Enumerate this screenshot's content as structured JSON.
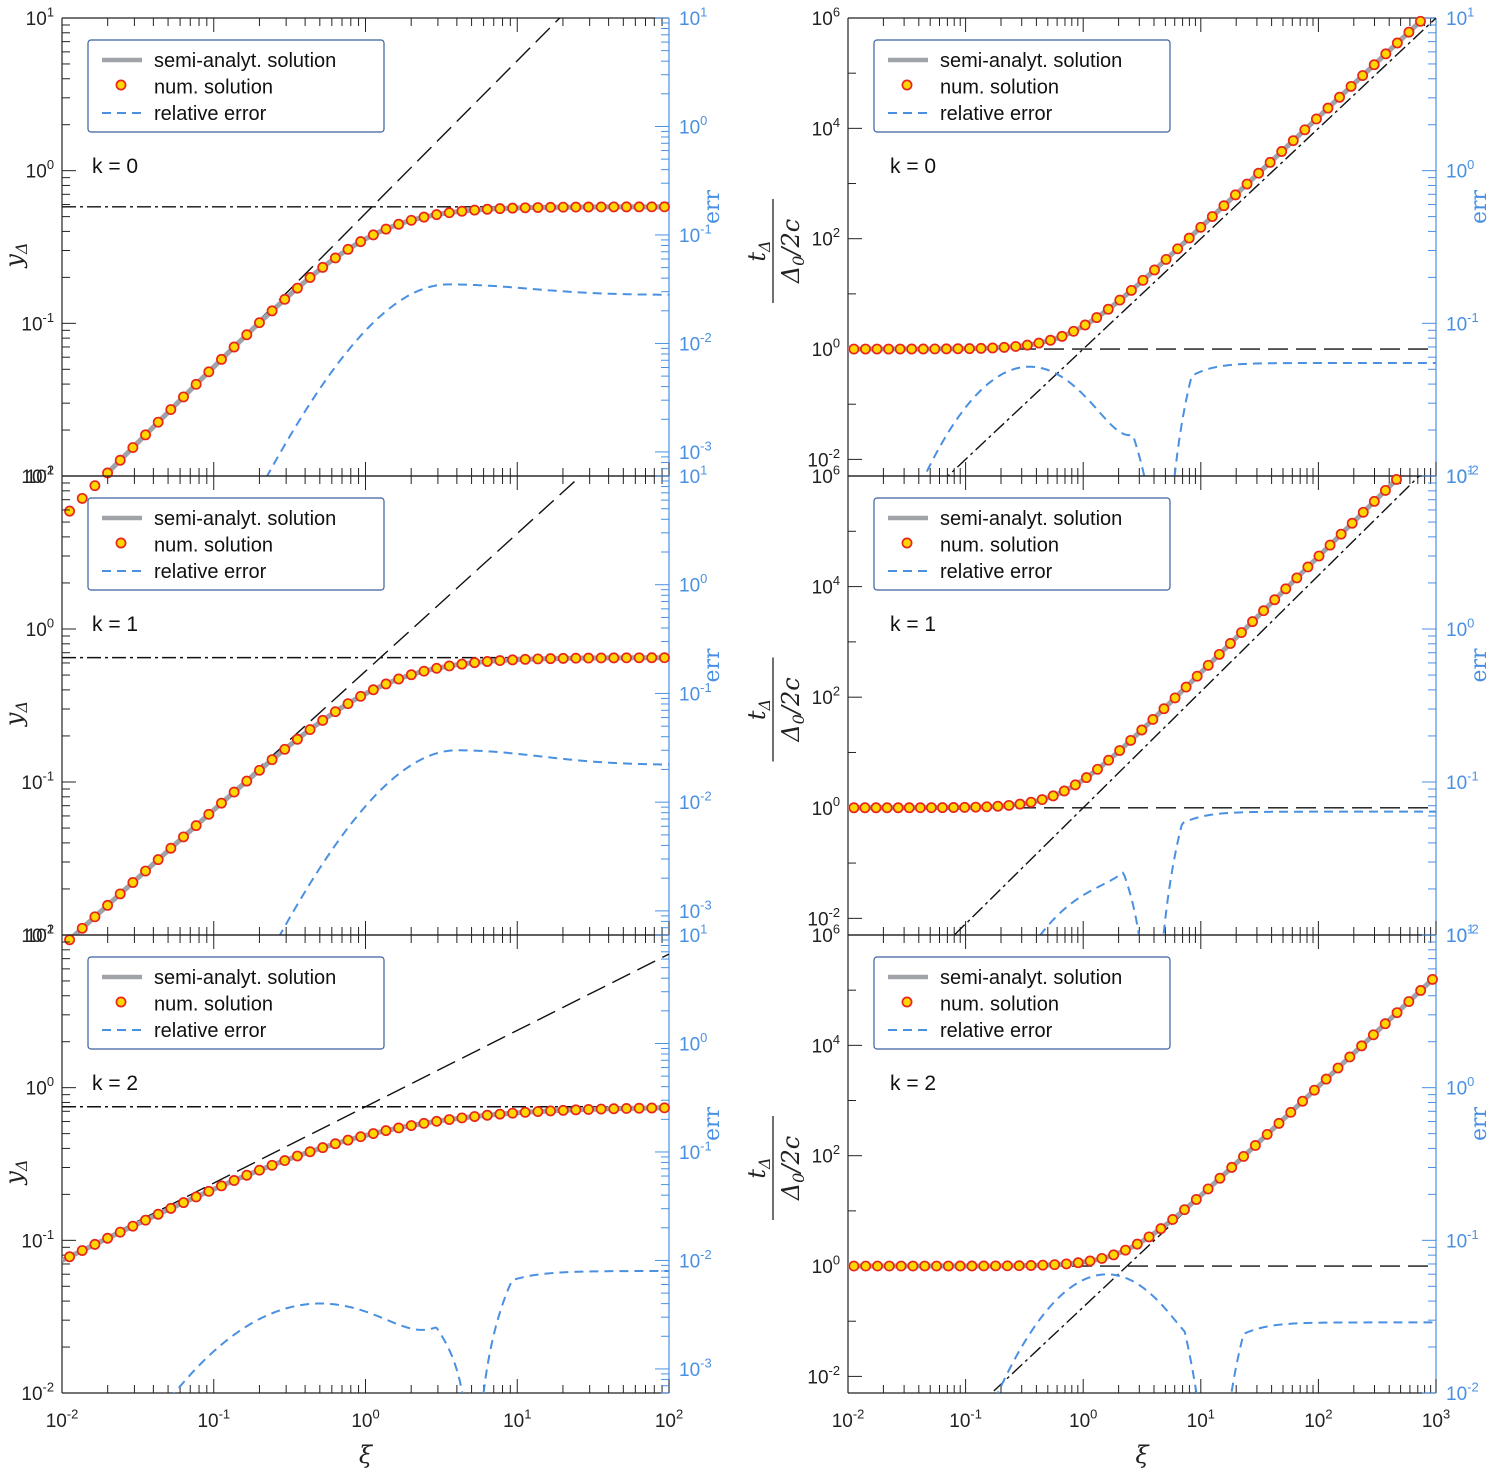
{
  "figure": {
    "err_color": "#4a90e2",
    "marker_fill": "#ffd700",
    "marker_stroke": "#e8251c",
    "semi_color": "#a0a4a8"
  },
  "chart_data": [
    {
      "id": "left-k0",
      "type": "line",
      "xscale": "log",
      "yscale": "log",
      "y2scale": "log",
      "xlim": [
        0.01,
        100
      ],
      "ylim": [
        0.01,
        10
      ],
      "y2lim": [
        0.0006,
        10
      ],
      "ylabel": "y_Δ",
      "y2label": "err",
      "k_label": "k = 0",
      "xticks": [
        0.01,
        0.1,
        1,
        10,
        100
      ],
      "yticks": [
        0.01,
        0.1,
        1,
        10
      ],
      "y2ticks": [
        0.001,
        0.01,
        0.1,
        1,
        10
      ],
      "legend": [
        "semi-analyt. solution",
        "num. solution",
        "relative error"
      ],
      "asymptote_dash": {
        "slope": 1,
        "value_at_1": 0.525
      },
      "asymptote_dashdot": {
        "value": 0.58
      },
      "solution": {
        "kind": "lsat",
        "a": 1,
        "b": 0.525,
        "c": 0.58,
        "p": 1.6
      },
      "error": {
        "kind": "peak",
        "peak_x": 3.5,
        "peak_val": 0.035,
        "lo_slope": 3,
        "hi_val": 0.028
      },
      "num_points": 48
    },
    {
      "id": "right-k0",
      "type": "line",
      "xscale": "log",
      "yscale": "log",
      "y2scale": "log",
      "xlim": [
        0.01,
        1000
      ],
      "ylim": [
        0.005,
        1000000
      ],
      "y2lim": [
        0.01,
        10
      ],
      "ylabel": "t_Δ / (Δ_0/2c)",
      "y2label": "err",
      "k_label": "k = 0",
      "xticks": [
        0.01,
        0.1,
        1,
        10,
        100,
        1000
      ],
      "yticks": [
        0.01,
        1,
        100,
        10000,
        1000000
      ],
      "y2ticks": [
        0.01,
        0.1,
        1,
        10
      ],
      "legend": [
        "semi-analyt. solution",
        "num. solution",
        "relative error"
      ],
      "asymptote_dash": {
        "value": 1
      },
      "asymptote_dashdot": {
        "slope": 2,
        "value_at_1": 1
      },
      "solution": {
        "kind": "rsum",
        "a": 1,
        "b": 1.6,
        "p": 2
      },
      "error": {
        "kind": "dip",
        "peak_x": 0.35,
        "peak_val": 0.052,
        "zero_x": 4.7,
        "hi_val": 0.055,
        "lo_slope": 1.5
      },
      "num_points": 50
    },
    {
      "id": "left-k1",
      "type": "line",
      "xscale": "log",
      "yscale": "log",
      "y2scale": "log",
      "xlim": [
        0.01,
        100
      ],
      "ylim": [
        0.01,
        10
      ],
      "y2lim": [
        0.0006,
        10
      ],
      "ylabel": "y_Δ",
      "y2label": "err",
      "k_label": "k = 1",
      "xticks": [
        0.01,
        0.1,
        1,
        10,
        100
      ],
      "yticks": [
        0.01,
        0.1,
        1,
        10
      ],
      "y2ticks": [
        0.001,
        0.01,
        0.1,
        1,
        10
      ],
      "legend": [
        "semi-analyt. solution",
        "num. solution",
        "relative error"
      ],
      "asymptote_dash": {
        "slope": 0.9,
        "value_at_1": 0.53
      },
      "asymptote_dashdot": {
        "value": 0.65
      },
      "solution": {
        "kind": "lsat",
        "a": 0.9,
        "b": 0.53,
        "c": 0.65,
        "p": 1.6
      },
      "error": {
        "kind": "peak",
        "peak_x": 4,
        "peak_val": 0.03,
        "lo_slope": 3,
        "hi_val": 0.022
      },
      "num_points": 48
    },
    {
      "id": "right-k1",
      "type": "line",
      "xscale": "log",
      "yscale": "log",
      "y2scale": "log",
      "xlim": [
        0.01,
        1000
      ],
      "ylim": [
        0.005,
        1000000
      ],
      "y2lim": [
        0.01,
        10
      ],
      "ylabel": "t_Δ / (Δ_0/2c)",
      "y2label": "err",
      "k_label": "k = 1",
      "xticks": [
        0.01,
        0.1,
        1,
        10,
        100,
        1000
      ],
      "yticks": [
        0.01,
        1,
        100,
        10000,
        1000000
      ],
      "y2ticks": [
        0.01,
        0.1,
        1,
        10
      ],
      "legend": [
        "semi-analyt. solution",
        "num. solution",
        "relative error"
      ],
      "asymptote_dash": {
        "value": 1
      },
      "asymptote_dashdot": {
        "slope": 2.1,
        "value_at_1": 1
      },
      "solution": {
        "kind": "rsum",
        "a": 1,
        "b": 2.2,
        "p": 2.1
      },
      "error": {
        "kind": "dip",
        "peak_x": 1.5,
        "peak_val": 0.018,
        "zero_x": 3.9,
        "hi_val": 0.064,
        "lo_slope": 1.5
      },
      "num_points": 50
    },
    {
      "id": "left-k2",
      "type": "line",
      "xscale": "log",
      "yscale": "log",
      "y2scale": "log",
      "xlim": [
        0.01,
        100
      ],
      "ylim": [
        0.01,
        10
      ],
      "y2lim": [
        0.0006,
        10
      ],
      "ylabel": "y_Δ",
      "y2label": "err",
      "k_label": "k = 2",
      "xticks": [
        0.01,
        0.1,
        1,
        10,
        100
      ],
      "yticks": [
        0.01,
        0.1,
        1,
        10
      ],
      "y2ticks": [
        0.001,
        0.01,
        0.1,
        1,
        10
      ],
      "legend": [
        "semi-analyt. solution",
        "num. solution",
        "relative error"
      ],
      "asymptote_dash": {
        "slope": 0.5,
        "value_at_1": 0.75
      },
      "asymptote_dashdot": {
        "value": 0.75
      },
      "solution": {
        "kind": "lsat",
        "a": 0.5,
        "b": 0.75,
        "c": 0.75,
        "p": 1.6
      },
      "error": {
        "kind": "dip",
        "peak_x": 0.5,
        "peak_val": 0.004,
        "zero_x": 5.2,
        "hi_val": 0.008,
        "lo_slope": 1
      },
      "num_points": 48
    },
    {
      "id": "right-k2",
      "type": "line",
      "xscale": "log",
      "yscale": "log",
      "y2scale": "log",
      "xlim": [
        0.01,
        1000
      ],
      "ylim": [
        0.005,
        1000000
      ],
      "y2lim": [
        0.01,
        10
      ],
      "ylabel": "t_Δ / (Δ_0/2c)",
      "y2label": "err",
      "k_label": "k = 2",
      "xticks": [
        0.01,
        0.1,
        1,
        10,
        100,
        1000
      ],
      "yticks": [
        0.01,
        1,
        100,
        10000,
        1000000
      ],
      "y2ticks": [
        0.01,
        0.1,
        1,
        10
      ],
      "legend": [
        "semi-analyt. solution",
        "num. solution",
        "relative error"
      ],
      "asymptote_dash": {
        "value": 1
      },
      "asymptote_dashdot": {
        "slope": 2,
        "value_at_1": 0.18
      },
      "solution": {
        "kind": "rsum",
        "a": 1,
        "b": 0.18,
        "p": 2
      },
      "error": {
        "kind": "dip",
        "peak_x": 1.6,
        "peak_val": 0.06,
        "zero_x": 13,
        "hi_val": 0.029,
        "lo_slope": 2
      },
      "num_points": 50
    }
  ],
  "xlabel": "ξ"
}
